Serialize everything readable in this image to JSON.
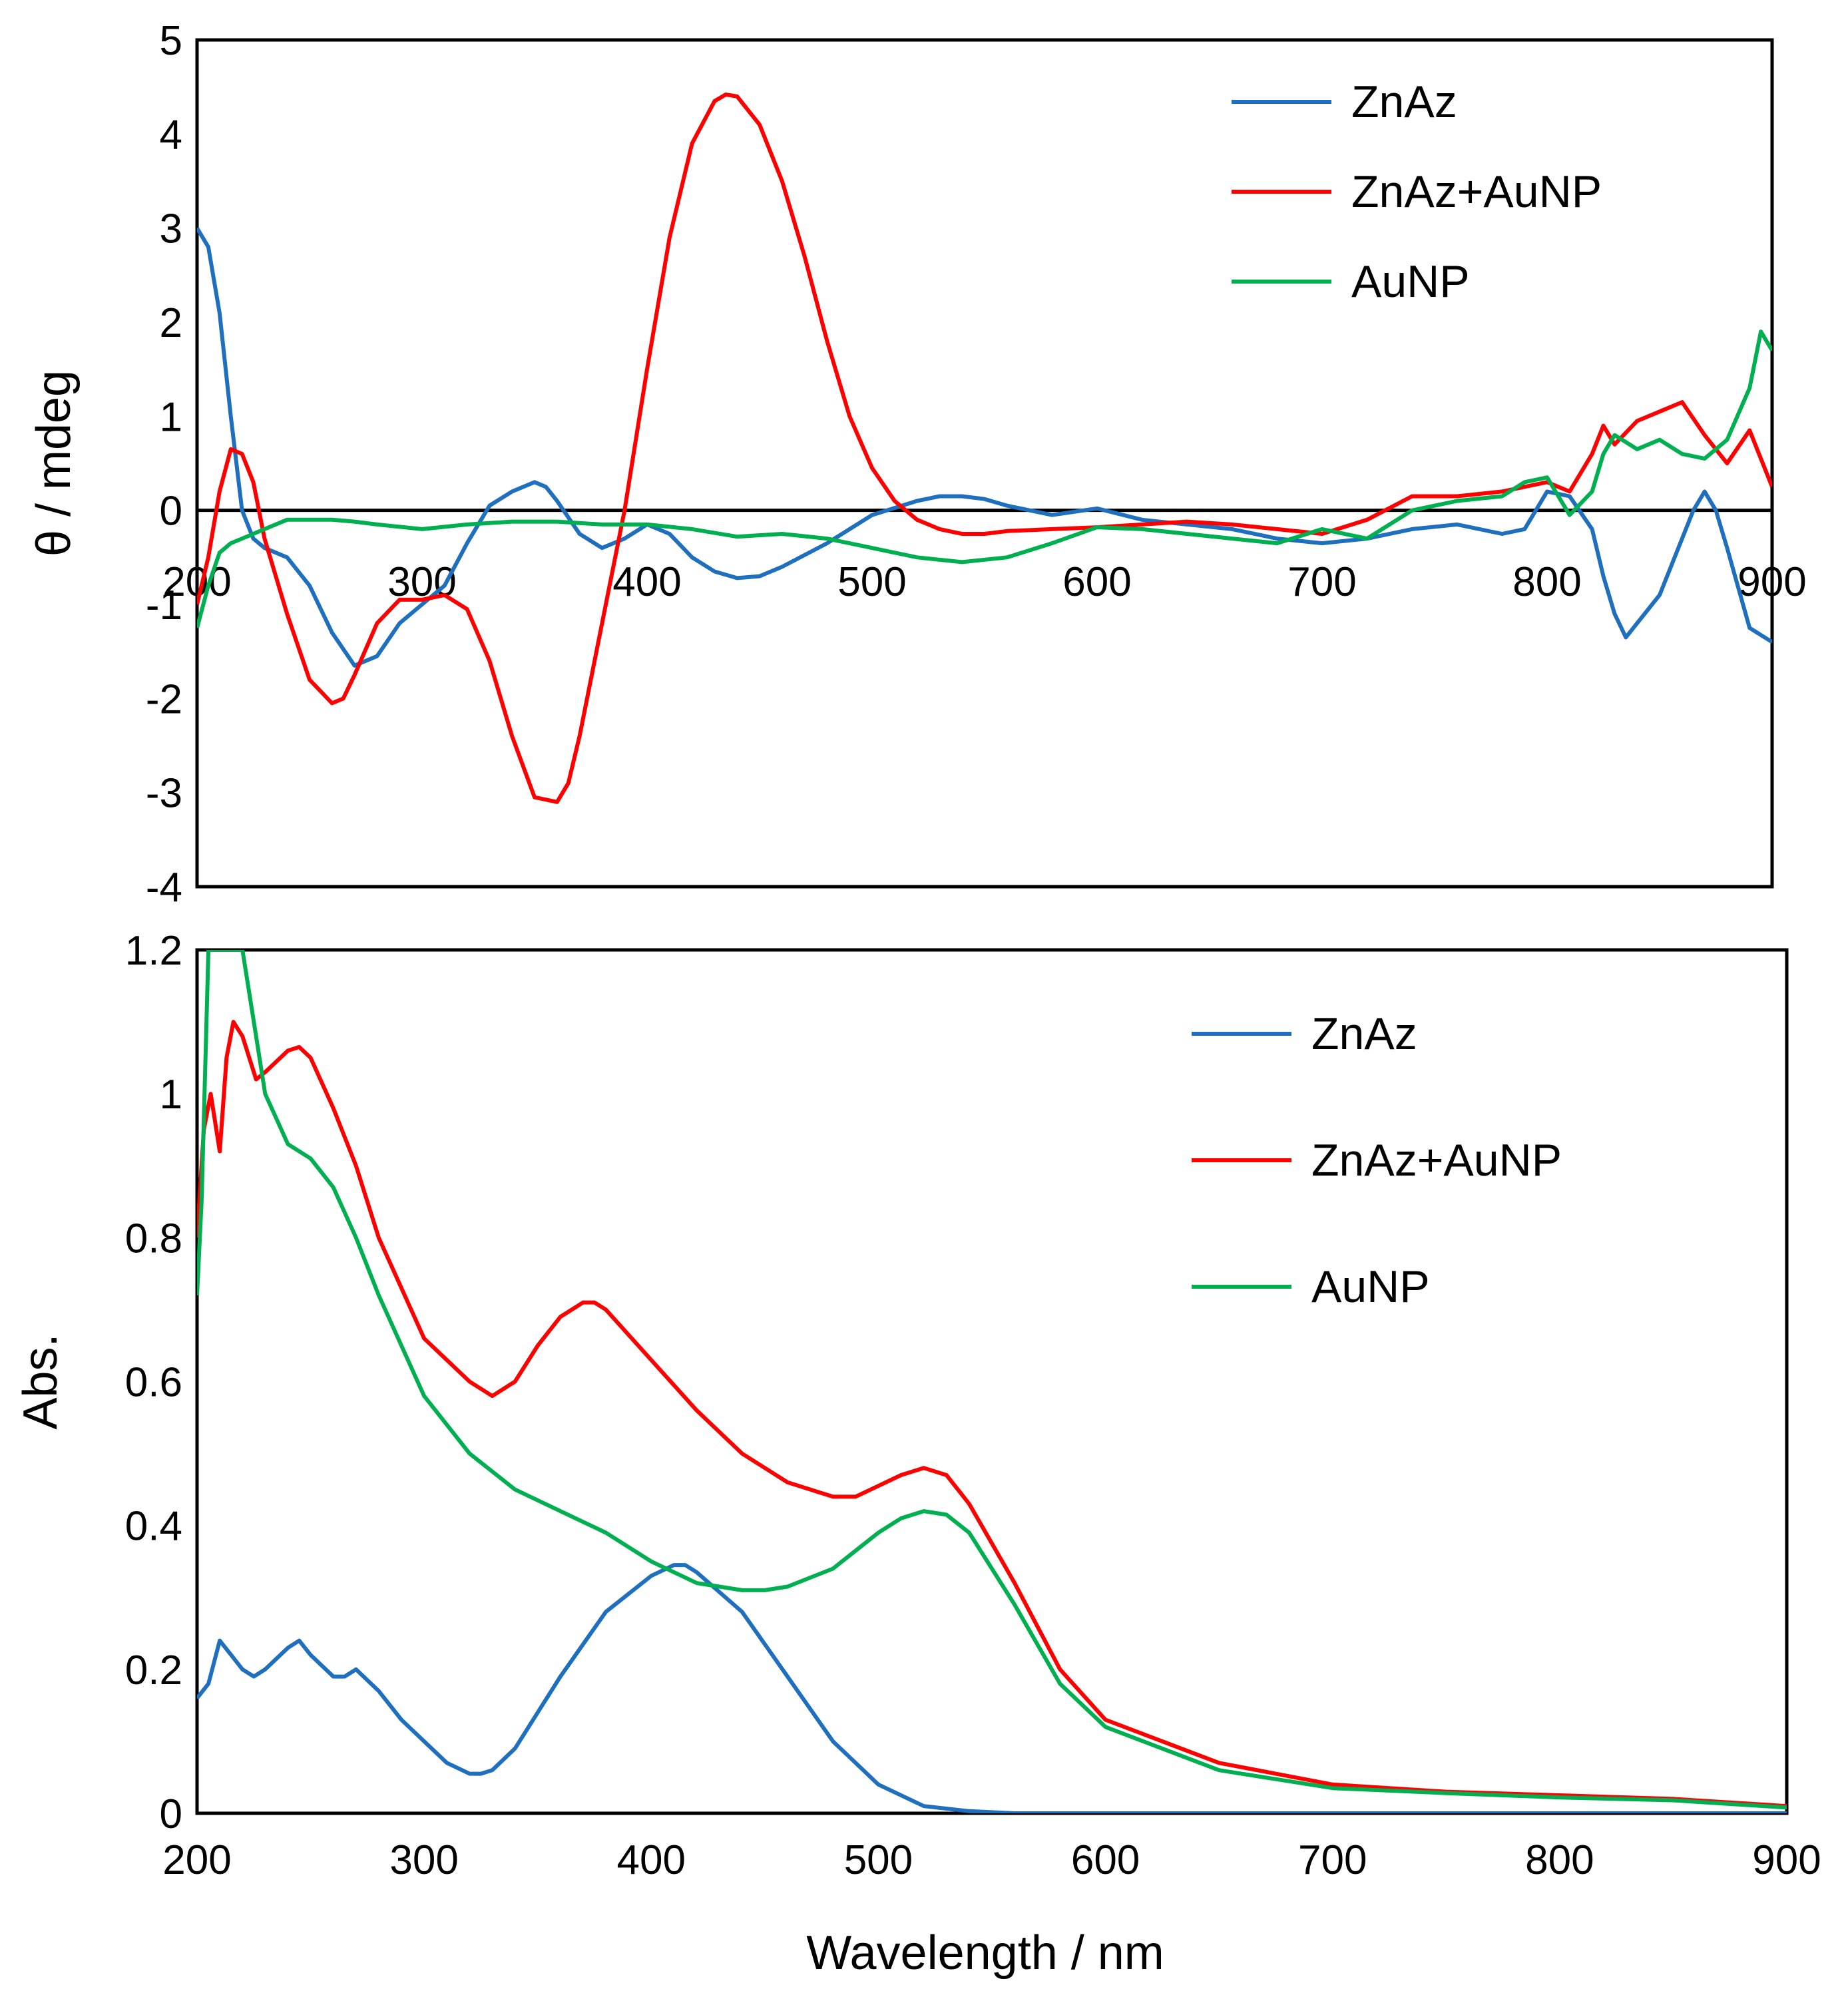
{
  "colors": {
    "ZnAz": "#1f6fbf",
    "ZnAz+AuNP": "#ff0000",
    "AuNP": "#00b050",
    "axis": "#000000"
  },
  "chart_data": [
    {
      "type": "line",
      "title": "",
      "xlabel": "",
      "ylabel": "θ / mdeg",
      "xlim": [
        200,
        900
      ],
      "ylim": [
        -4,
        5
      ],
      "xticks": [
        "200",
        "300",
        "400",
        "500",
        "600",
        "700",
        "800",
        "900"
      ],
      "yticks": [
        "-4",
        "-3",
        "-2",
        "-1",
        "0",
        "1",
        "2",
        "3",
        "4",
        "5"
      ],
      "legend_position": "top-right",
      "series": [
        {
          "name": "ZnAz",
          "color": "#1f6fbf",
          "x": [
            200,
            205,
            210,
            215,
            220,
            225,
            230,
            240,
            250,
            260,
            270,
            280,
            290,
            300,
            310,
            320,
            330,
            340,
            350,
            355,
            360,
            370,
            380,
            390,
            400,
            410,
            420,
            430,
            440,
            450,
            460,
            480,
            500,
            520,
            530,
            540,
            550,
            560,
            580,
            600,
            620,
            640,
            660,
            680,
            700,
            720,
            740,
            760,
            780,
            790,
            800,
            810,
            820,
            825,
            830,
            835,
            840,
            850,
            860,
            865,
            870,
            875,
            880,
            890,
            900
          ],
          "y": [
            3.0,
            2.8,
            2.1,
            1.0,
            0.0,
            -0.3,
            -0.4,
            -0.5,
            -0.8,
            -1.3,
            -1.65,
            -1.55,
            -1.2,
            -1.0,
            -0.8,
            -0.35,
            0.05,
            0.2,
            0.3,
            0.25,
            0.1,
            -0.25,
            -0.4,
            -0.3,
            -0.15,
            -0.25,
            -0.5,
            -0.65,
            -0.72,
            -0.7,
            -0.6,
            -0.35,
            -0.05,
            0.1,
            0.15,
            0.15,
            0.12,
            0.05,
            -0.05,
            0.02,
            -0.1,
            -0.15,
            -0.2,
            -0.3,
            -0.35,
            -0.3,
            -0.2,
            -0.15,
            -0.25,
            -0.2,
            0.2,
            0.15,
            -0.2,
            -0.7,
            -1.1,
            -1.35,
            -1.2,
            -0.9,
            -0.3,
            0.0,
            0.2,
            0.0,
            -0.4,
            -1.25,
            -1.4
          ]
        },
        {
          "name": "ZnAz+AuNP",
          "color": "#ff0000",
          "x": [
            200,
            205,
            210,
            215,
            220,
            225,
            230,
            240,
            250,
            260,
            265,
            270,
            280,
            290,
            300,
            310,
            320,
            330,
            340,
            350,
            360,
            365,
            370,
            380,
            390,
            400,
            410,
            420,
            430,
            435,
            440,
            450,
            460,
            470,
            480,
            490,
            500,
            510,
            520,
            530,
            540,
            550,
            560,
            580,
            600,
            620,
            640,
            660,
            680,
            700,
            720,
            740,
            760,
            780,
            800,
            810,
            820,
            825,
            830,
            840,
            850,
            860,
            870,
            880,
            890,
            900
          ],
          "y": [
            -1.0,
            -0.5,
            0.2,
            0.65,
            0.6,
            0.3,
            -0.3,
            -1.1,
            -1.8,
            -2.05,
            -2.0,
            -1.75,
            -1.2,
            -0.95,
            -0.95,
            -0.9,
            -1.05,
            -1.6,
            -2.4,
            -3.05,
            -3.1,
            -2.9,
            -2.4,
            -1.2,
            0.0,
            1.5,
            2.9,
            3.9,
            4.35,
            4.42,
            4.4,
            4.1,
            3.5,
            2.7,
            1.8,
            1.0,
            0.45,
            0.1,
            -0.1,
            -0.2,
            -0.25,
            -0.25,
            -0.22,
            -0.2,
            -0.18,
            -0.15,
            -0.12,
            -0.15,
            -0.2,
            -0.25,
            -0.1,
            0.15,
            0.15,
            0.2,
            0.3,
            0.2,
            0.6,
            0.9,
            0.7,
            0.95,
            1.05,
            1.15,
            0.8,
            0.5,
            0.85,
            0.25
          ]
        },
        {
          "name": "AuNP",
          "color": "#00b050",
          "x": [
            200,
            205,
            210,
            215,
            220,
            230,
            240,
            250,
            260,
            270,
            280,
            300,
            320,
            340,
            360,
            380,
            400,
            420,
            440,
            460,
            480,
            500,
            520,
            540,
            560,
            580,
            600,
            620,
            640,
            660,
            680,
            700,
            720,
            740,
            760,
            780,
            790,
            800,
            810,
            820,
            825,
            830,
            840,
            850,
            860,
            870,
            880,
            890,
            895,
            900
          ],
          "y": [
            -1.25,
            -0.8,
            -0.45,
            -0.35,
            -0.3,
            -0.2,
            -0.1,
            -0.1,
            -0.1,
            -0.12,
            -0.15,
            -0.2,
            -0.15,
            -0.12,
            -0.12,
            -0.15,
            -0.15,
            -0.2,
            -0.28,
            -0.25,
            -0.3,
            -0.4,
            -0.5,
            -0.55,
            -0.5,
            -0.35,
            -0.18,
            -0.2,
            -0.25,
            -0.3,
            -0.35,
            -0.2,
            -0.3,
            0.0,
            0.1,
            0.15,
            0.3,
            0.35,
            -0.05,
            0.2,
            0.6,
            0.8,
            0.65,
            0.75,
            0.6,
            0.55,
            0.75,
            1.3,
            1.9,
            1.7
          ]
        }
      ]
    },
    {
      "type": "line",
      "title": "",
      "xlabel": "Wavelength / nm",
      "ylabel": "Abs.",
      "xlim": [
        200,
        900
      ],
      "ylim": [
        0,
        1.2
      ],
      "xticks": [
        "200",
        "300",
        "400",
        "500",
        "600",
        "700",
        "800",
        "900"
      ],
      "yticks": [
        "0",
        "0.2",
        "0.4",
        "0.6",
        "0.8",
        "1",
        "1.2"
      ],
      "legend_position": "top-right",
      "series": [
        {
          "name": "ZnAz",
          "color": "#1f6fbf",
          "x": [
            200,
            205,
            210,
            215,
            220,
            225,
            230,
            240,
            245,
            250,
            260,
            265,
            270,
            280,
            290,
            300,
            310,
            320,
            325,
            330,
            340,
            360,
            380,
            400,
            410,
            415,
            420,
            440,
            460,
            480,
            500,
            520,
            540,
            560,
            600,
            700,
            800,
            900
          ],
          "y": [
            0.16,
            0.18,
            0.24,
            0.22,
            0.2,
            0.19,
            0.2,
            0.23,
            0.24,
            0.22,
            0.19,
            0.19,
            0.2,
            0.17,
            0.13,
            0.1,
            0.07,
            0.055,
            0.055,
            0.06,
            0.09,
            0.19,
            0.28,
            0.33,
            0.345,
            0.345,
            0.335,
            0.28,
            0.19,
            0.1,
            0.04,
            0.01,
            0.003,
            0.0,
            0.0,
            0.0,
            0.0,
            0.0
          ]
        },
        {
          "name": "ZnAz+AuNP",
          "color": "#ff0000",
          "x": [
            200,
            203,
            206,
            210,
            213,
            216,
            220,
            226,
            230,
            240,
            245,
            250,
            260,
            270,
            280,
            300,
            320,
            330,
            340,
            350,
            360,
            370,
            375,
            380,
            400,
            420,
            440,
            460,
            480,
            490,
            500,
            510,
            520,
            530,
            540,
            560,
            580,
            600,
            650,
            700,
            750,
            800,
            850,
            900
          ],
          "y": [
            0.8,
            0.95,
            1.0,
            0.92,
            1.05,
            1.1,
            1.08,
            1.02,
            1.03,
            1.06,
            1.065,
            1.05,
            0.98,
            0.9,
            0.8,
            0.66,
            0.6,
            0.58,
            0.6,
            0.65,
            0.69,
            0.71,
            0.71,
            0.7,
            0.63,
            0.56,
            0.5,
            0.46,
            0.44,
            0.44,
            0.455,
            0.47,
            0.48,
            0.47,
            0.43,
            0.32,
            0.2,
            0.13,
            0.07,
            0.04,
            0.03,
            0.025,
            0.02,
            0.01
          ]
        },
        {
          "name": "AuNP",
          "color": "#00b050",
          "x": [
            200,
            202,
            205,
            208,
            212,
            216,
            220,
            225,
            230,
            240,
            250,
            260,
            270,
            280,
            300,
            320,
            340,
            360,
            380,
            400,
            420,
            440,
            450,
            460,
            480,
            500,
            510,
            520,
            530,
            540,
            560,
            580,
            600,
            650,
            700,
            750,
            800,
            850,
            900
          ],
          "y": [
            0.72,
            0.85,
            1.2,
            1.2,
            1.2,
            1.2,
            1.2,
            1.1,
            1.0,
            0.93,
            0.91,
            0.87,
            0.8,
            0.72,
            0.58,
            0.5,
            0.45,
            0.42,
            0.39,
            0.35,
            0.32,
            0.31,
            0.31,
            0.315,
            0.34,
            0.39,
            0.41,
            0.42,
            0.415,
            0.39,
            0.29,
            0.18,
            0.12,
            0.06,
            0.035,
            0.028,
            0.022,
            0.018,
            0.008
          ]
        }
      ]
    }
  ]
}
